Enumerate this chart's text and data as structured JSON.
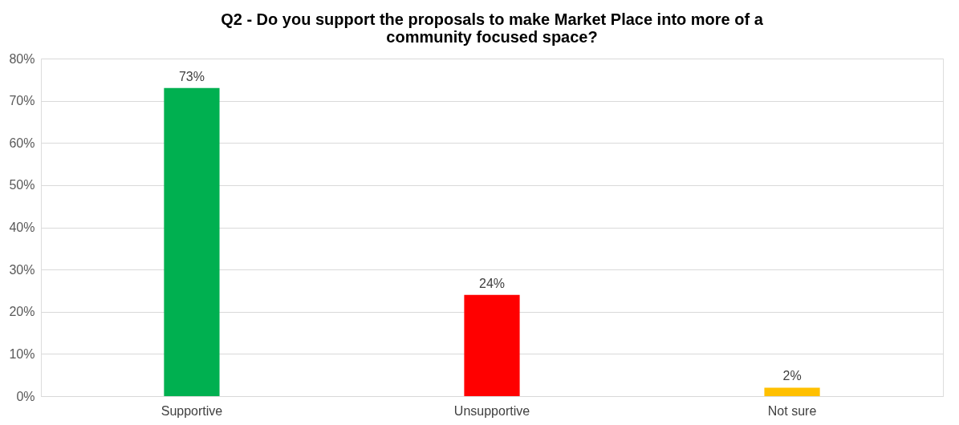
{
  "chart_data": {
    "type": "bar",
    "title": "Q2 - Do you support the proposals to make Market Place into more of a community focused space?",
    "categories": [
      "Supportive",
      "Unsupportive",
      "Not sure"
    ],
    "values": [
      73,
      24,
      2
    ],
    "colors": [
      "#00b050",
      "#ff0000",
      "#ffc000"
    ],
    "value_labels": [
      "73%",
      "24%",
      "2%"
    ],
    "ylim": [
      0,
      80
    ],
    "yticks": [
      {
        "value": 0,
        "label": "0%"
      },
      {
        "value": 10,
        "label": "10%"
      },
      {
        "value": 20,
        "label": "20%"
      },
      {
        "value": 30,
        "label": "30%"
      },
      {
        "value": 40,
        "label": "40%"
      },
      {
        "value": 50,
        "label": "50%"
      },
      {
        "value": 60,
        "label": "60%"
      },
      {
        "value": 70,
        "label": "70%"
      },
      {
        "value": 80,
        "label": "80%"
      }
    ],
    "grid": "y",
    "legend": false
  }
}
